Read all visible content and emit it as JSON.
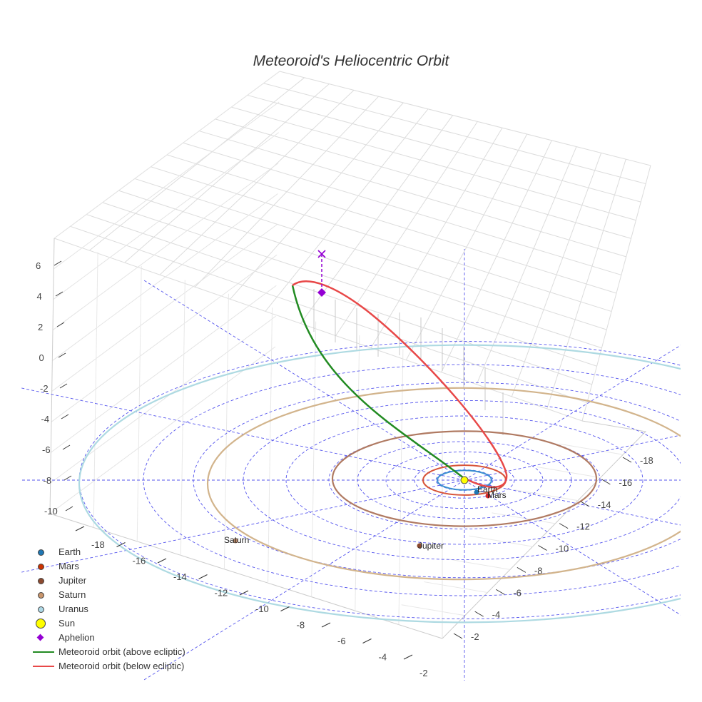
{
  "chart_data": {
    "type": "3d-orbit",
    "title": "Meteoroid's Heliocentric Orbit",
    "x_ticks": [
      "-18",
      "-16",
      "-14",
      "-12",
      "-10",
      "-8",
      "-6",
      "-4",
      "-2"
    ],
    "y_ticks": [
      "-18",
      "-16",
      "-14",
      "-12",
      "-10",
      "-8",
      "-6",
      "-4",
      "-2"
    ],
    "z_ticks": [
      "6",
      "4",
      "2",
      "0",
      "-2",
      "-4",
      "-6",
      "-8",
      "-10"
    ],
    "planets": [
      {
        "name": "Earth",
        "color": "#1f77b4",
        "orbit_color": "#3a8fd0",
        "label": "Earth"
      },
      {
        "name": "Mars",
        "color": "#d62728",
        "orbit_color": "#d8553a",
        "label": "Mars"
      },
      {
        "name": "Jupiter",
        "color": "#8c4a2f",
        "orbit_color": "#b07a62",
        "label": "Jupiter"
      },
      {
        "name": "Saturn",
        "color": "#b8896a",
        "orbit_color": "#d2b48c",
        "label": "Saturn"
      },
      {
        "name": "Uranus",
        "color": "#add8e6",
        "orbit_color": "#aedae2",
        "label": ""
      }
    ],
    "sun": {
      "name": "Sun",
      "color": "#ffff00"
    },
    "aphelion": {
      "name": "Aphelion",
      "color": "#9400d3"
    },
    "orbit_above": {
      "name": "Meteoroid orbit (above ecliptic)",
      "color": "#228b22"
    },
    "orbit_below": {
      "name": "Meteoroid orbit (below ecliptic)",
      "color": "#e84848"
    },
    "ecliptic_grid_color": "#5555ee"
  },
  "legend": [
    {
      "label": "Earth",
      "kind": "dot",
      "color": "#1f77b4"
    },
    {
      "label": "Mars",
      "kind": "dot",
      "color": "#cc3300"
    },
    {
      "label": "Jupiter",
      "kind": "dot",
      "color": "#8c4a2f"
    },
    {
      "label": "Saturn",
      "kind": "dot",
      "color": "#c8956c"
    },
    {
      "label": "Uranus",
      "kind": "dot",
      "color": "#add8e6"
    },
    {
      "label": "Sun",
      "kind": "bigdot",
      "color": "#ffff00"
    },
    {
      "label": "Aphelion",
      "kind": "diamond",
      "color": "#9400d3"
    },
    {
      "label": "Meteoroid orbit (above ecliptic)",
      "kind": "line",
      "color": "#228b22"
    },
    {
      "label": "Meteoroid orbit (below ecliptic)",
      "kind": "line",
      "color": "#e84848"
    }
  ]
}
